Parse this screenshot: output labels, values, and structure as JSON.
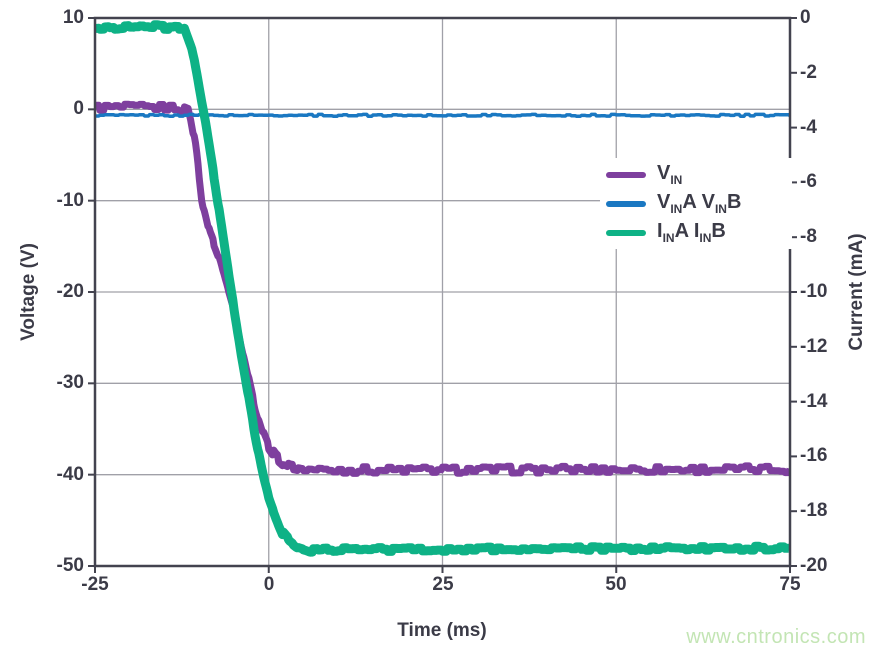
{
  "watermark": "www.cntronics.com",
  "chart_data": {
    "type": "line",
    "title": "",
    "xlabel": "Time (ms)",
    "ylabel_left": "Voltage (V)",
    "ylabel_right": "Current (mA)",
    "xlim": [
      -25,
      75
    ],
    "ylim_left": [
      -50,
      10
    ],
    "ylim_right": [
      -20,
      0
    ],
    "x_ticks": [
      -25,
      0,
      25,
      50,
      75
    ],
    "y_left_ticks": [
      10,
      0,
      -10,
      -20,
      -30,
      -40,
      -50
    ],
    "y_right_ticks": [
      0,
      -2,
      -4,
      -6,
      -8,
      -10,
      -12,
      -14,
      -16,
      -18,
      -20
    ],
    "grid": true,
    "legend_position": "center-right",
    "colors": {
      "axis_text": "#3b3b47",
      "grid": "#a0a0a8",
      "border": "#43434f",
      "watermark": "#c3e5b4",
      "background": "#ffffff"
    },
    "series": [
      {
        "name": "V_IN",
        "axis": "left",
        "color": "#7e3f9e",
        "width": 7,
        "noise": 0.38,
        "label_parts": [
          {
            "t": "V",
            "s": "IN"
          }
        ],
        "points": [
          [
            -25,
            0.2
          ],
          [
            -13,
            0.2
          ],
          [
            -11.4,
            -0.3
          ],
          [
            -10.5,
            -4
          ],
          [
            -9.6,
            -10
          ],
          [
            -8.5,
            -13.5
          ],
          [
            -7,
            -16.5
          ],
          [
            -6.3,
            -18.5
          ],
          [
            -5,
            -22
          ],
          [
            -4,
            -25.5
          ],
          [
            -3,
            -29
          ],
          [
            -2,
            -32.5
          ],
          [
            -1,
            -35
          ],
          [
            0,
            -36.9
          ],
          [
            1,
            -38
          ],
          [
            2,
            -38.7
          ],
          [
            3,
            -39.1
          ],
          [
            5,
            -39.4
          ],
          [
            8,
            -39.5
          ],
          [
            75,
            -39.4
          ]
        ]
      },
      {
        "name": "V_INA V_INB",
        "axis": "left",
        "color": "#1a78c2",
        "width": 3.5,
        "noise": 0.1,
        "label_parts": [
          {
            "t": "V",
            "s": "IN"
          },
          {
            "t": "A V",
            "s": "IN"
          },
          {
            "t": "B",
            "s": ""
          }
        ],
        "points": [
          [
            -25,
            -0.65
          ],
          [
            75,
            -0.65
          ]
        ]
      },
      {
        "name": "I_INA I_INB",
        "axis": "right",
        "color": "#0eb286",
        "width": 9,
        "noise": 0.08,
        "label_parts": [
          {
            "t": "I",
            "s": "IN"
          },
          {
            "t": "A I",
            "s": "IN"
          },
          {
            "t": "B",
            "s": ""
          }
        ],
        "points": [
          [
            -25,
            -0.4
          ],
          [
            -20,
            -0.3
          ],
          [
            -12.2,
            -0.35
          ],
          [
            -11,
            -1.2
          ],
          [
            -10,
            -2.6
          ],
          [
            -9,
            -4
          ],
          [
            -8,
            -5.6
          ],
          [
            -7,
            -7.3
          ],
          [
            -6,
            -9
          ],
          [
            -5,
            -10.6
          ],
          [
            -4,
            -12.2
          ],
          [
            -3,
            -13.7
          ],
          [
            -2,
            -15.2
          ],
          [
            -1,
            -16.5
          ],
          [
            0,
            -17.5
          ],
          [
            1,
            -18.2
          ],
          [
            2,
            -18.8
          ],
          [
            3,
            -19.1
          ],
          [
            4,
            -19.3
          ],
          [
            6,
            -19.45
          ],
          [
            10,
            -19.4
          ],
          [
            75,
            -19.35
          ]
        ]
      }
    ]
  }
}
